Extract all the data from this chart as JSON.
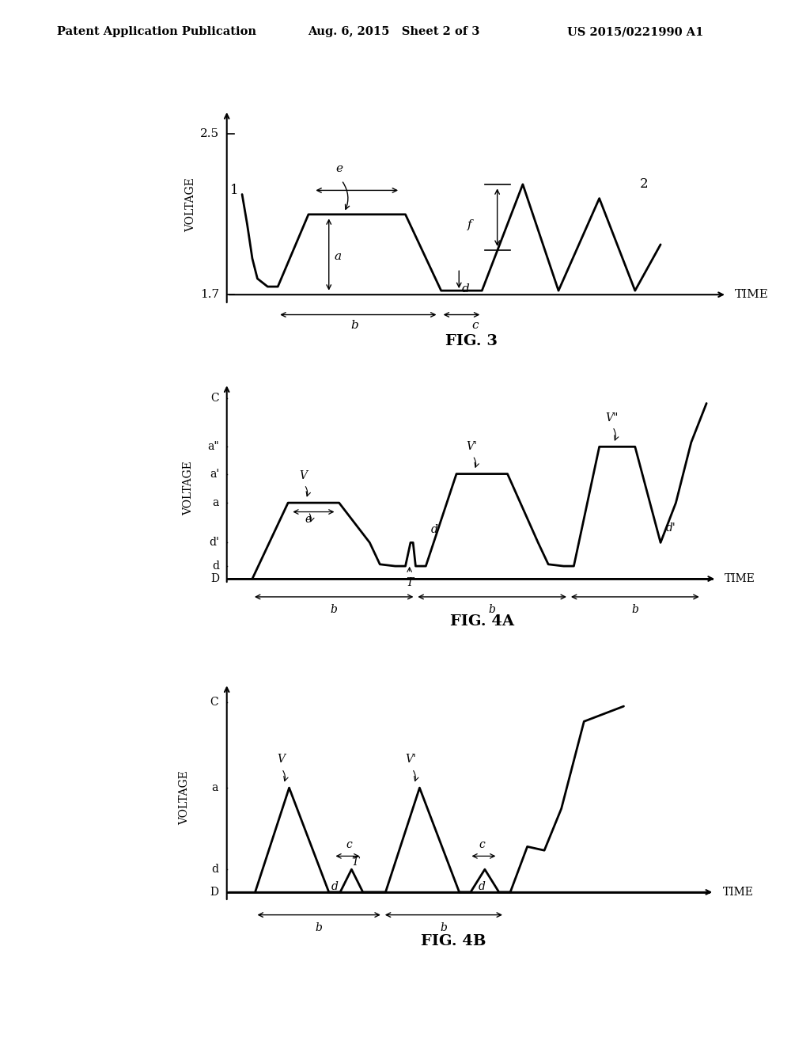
{
  "header_left": "Patent Application Publication",
  "header_mid": "Aug. 6, 2015   Sheet 2 of 3",
  "header_right": "US 2015/0221990 A1",
  "fig3_title": "FIG. 3",
  "fig4a_title": "FIG. 4A",
  "fig4b_title": "FIG. 4B",
  "bg_color": "#ffffff",
  "line_color": "#000000"
}
